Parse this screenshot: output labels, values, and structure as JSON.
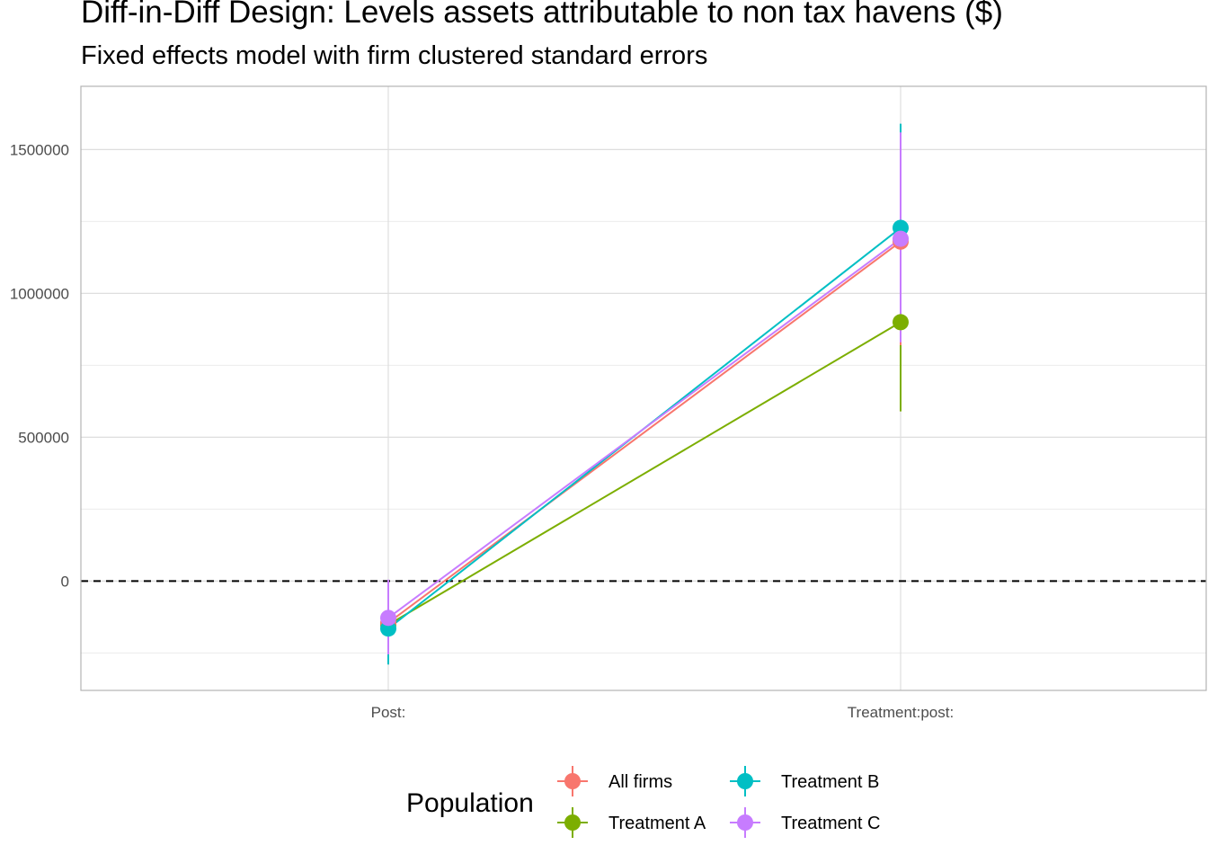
{
  "chart_data": {
    "type": "line",
    "title": "Diff-in-Diff Design: Levels assets attributable to non tax havens  ($)",
    "subtitle": "Fixed effects model with firm clustered standard errors",
    "xlabel": "",
    "ylabel": "",
    "categories": [
      "Post:",
      "Treatment:post:"
    ],
    "ylim": [
      -380000,
      1720000
    ],
    "y_ticks": [
      0,
      500000,
      1000000,
      1500000
    ],
    "y_tick_labels": [
      "0",
      "500000",
      "1000000",
      "1500000"
    ],
    "reference_line": {
      "y": 0,
      "style": "dashed"
    },
    "grid": true,
    "legend": {
      "title": "Population",
      "position": "bottom",
      "entries": [
        "All firms",
        "Treatment B",
        "Treatment A",
        "Treatment C"
      ]
    },
    "series": [
      {
        "name": "All firms",
        "color": "#F8766D",
        "values": [
          -145000,
          1180000
        ],
        "lower": [
          -270000,
          820000
        ],
        "upper": [
          -20000,
          1540000
        ]
      },
      {
        "name": "Treatment A",
        "color": "#7CAE00",
        "values": [
          -152000,
          900000
        ],
        "lower": [
          -280000,
          590000
        ],
        "upper": [
          -25000,
          1210000
        ]
      },
      {
        "name": "Treatment B",
        "color": "#00BFC4",
        "values": [
          -165000,
          1228000
        ],
        "lower": [
          -290000,
          870000
        ],
        "upper": [
          -40000,
          1590000
        ]
      },
      {
        "name": "Treatment C",
        "color": "#C77CFF",
        "values": [
          -128000,
          1190000
        ],
        "lower": [
          -255000,
          830000
        ],
        "upper": [
          5000,
          1560000
        ]
      }
    ]
  }
}
